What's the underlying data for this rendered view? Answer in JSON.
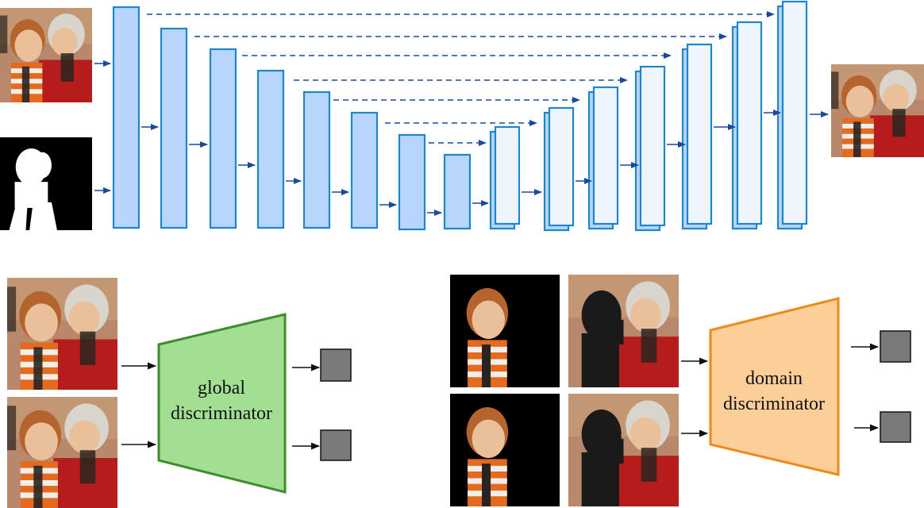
{
  "global_discriminator": {
    "label_line1": "global",
    "label_line2": "discriminator"
  },
  "domain_discriminator": {
    "label_line1": "domain",
    "label_line2": "discriminator"
  },
  "colors": {
    "encoder_fill": "#b8d5fb",
    "decoder_front_fill": "#eef5fd",
    "block_stroke": "#1f86c9",
    "arrow": "#1a4a9c",
    "global_disc_fill": "#a3df93",
    "global_disc_stroke": "#3e8c2e",
    "domain_disc_fill": "#fdcf98",
    "domain_disc_stroke": "#ec8a1d",
    "output_box": "#7a7a7a"
  },
  "icons": {
    "input_image": "composite-photo-icon",
    "input_mask": "foreground-mask-icon",
    "output_image": "harmonized-photo-icon",
    "foreground_image": "foreground-only-photo-icon",
    "background_image": "background-only-photo-icon"
  }
}
